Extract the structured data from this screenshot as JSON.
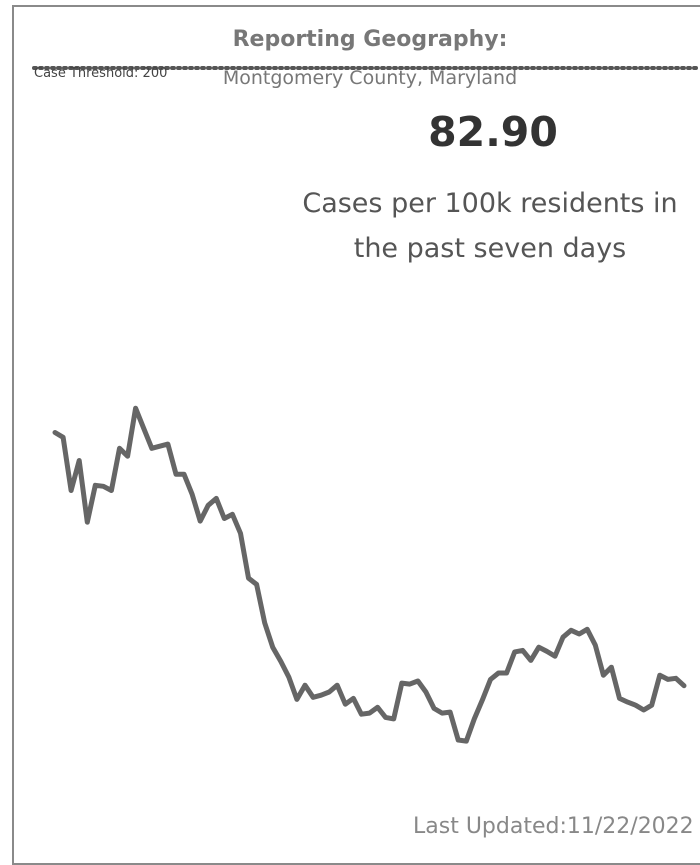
{
  "chart_data": {
    "type": "line",
    "header": "Reporting Geography:",
    "geography": "Montgomery County, Maryland",
    "kpi": "82.90",
    "kpi_description": "Cases per 100k residents in the past seven days",
    "threshold": {
      "label": "Case Threshold:",
      "value": 200
    },
    "last_updated": {
      "label": "Last Updated:",
      "date": "11/22/2022"
    },
    "ylim": [
      0,
      200
    ],
    "series": [
      {
        "name": null,
        "color": "#666666",
        "values": [
          130.9,
          130.0,
          119.9,
          125.6,
          113.9,
          120.9,
          120.7,
          119.9,
          127.9,
          126.4,
          135.5,
          131.7,
          127.9,
          128.3,
          128.7,
          123.0,
          123.0,
          119.2,
          114.1,
          117.1,
          118.4,
          114.6,
          115.4,
          111.8,
          103.3,
          102.1,
          94.8,
          90.2,
          87.5,
          84.5,
          80.3,
          83.0,
          80.7,
          81.1,
          81.7,
          83.0,
          79.4,
          80.5,
          77.5,
          77.7,
          78.8,
          76.9,
          76.6,
          83.4,
          83.2,
          83.8,
          81.7,
          78.6,
          77.7,
          77.9,
          72.6,
          72.4,
          76.6,
          80.2,
          84.1,
          85.3,
          85.3,
          89.3,
          89.6,
          87.7,
          90.2,
          89.4,
          88.5,
          92.1,
          93.4,
          92.7,
          93.6,
          90.6,
          84.9,
          86.4,
          80.5,
          79.8,
          79.2,
          78.3,
          79.2,
          84.9,
          84.1,
          84.3,
          82.9
        ]
      }
    ]
  }
}
